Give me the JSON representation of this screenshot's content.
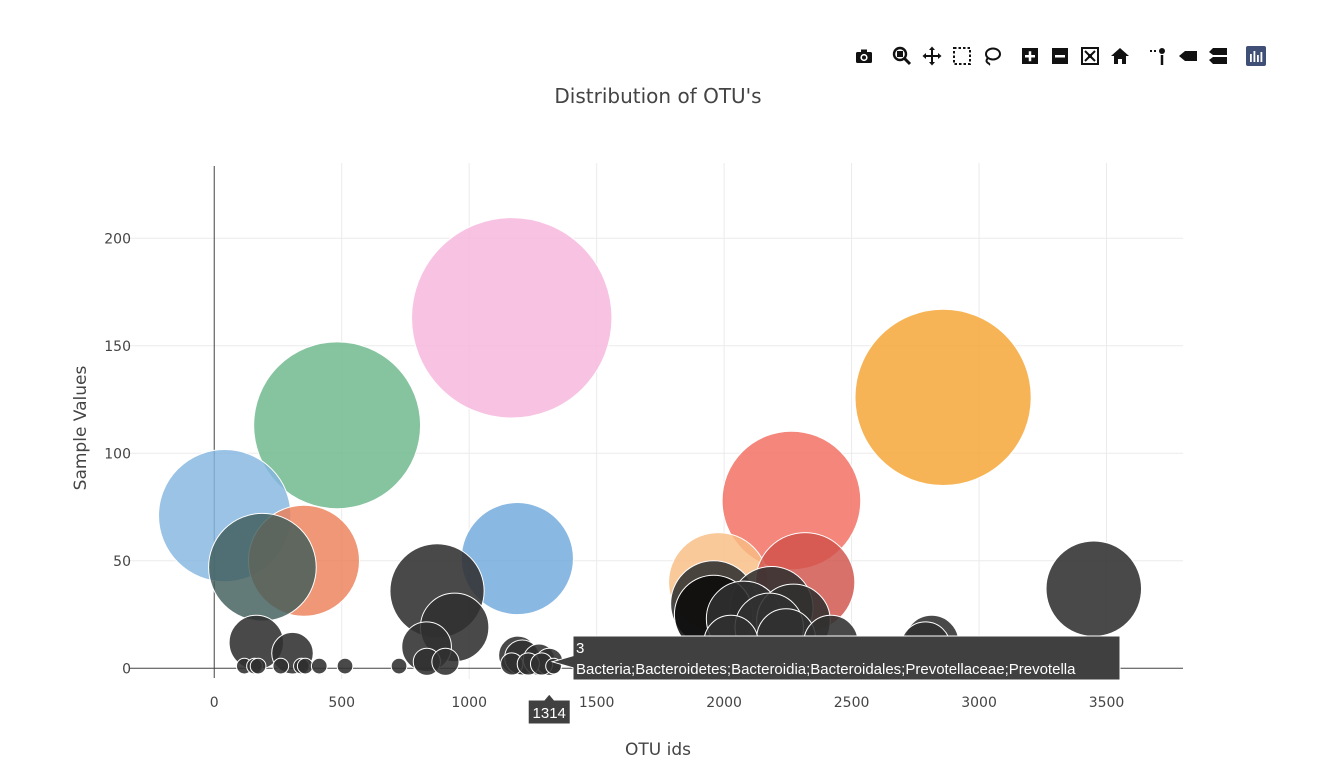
{
  "modebar": {
    "buttons": [
      {
        "name": "camera-icon"
      },
      {
        "name": "zoom-icon"
      },
      {
        "name": "pan-icon"
      },
      {
        "name": "box-select-icon"
      },
      {
        "name": "lasso-select-icon"
      },
      {
        "name": "zoom-in-icon"
      },
      {
        "name": "zoom-out-icon"
      },
      {
        "name": "autoscale-icon"
      },
      {
        "name": "reset-axes-icon"
      },
      {
        "name": "spike-lines-icon"
      },
      {
        "name": "hover-closest-icon"
      },
      {
        "name": "hover-compare-icon"
      },
      {
        "name": "plotly-logo-icon"
      }
    ]
  },
  "chart_data": {
    "type": "scatter",
    "mode": "bubble",
    "title": "Distribution of OTU's",
    "xlabel": "OTU ids",
    "ylabel": "Sample Values",
    "xlim": [
      -350,
      3800
    ],
    "ylim": [
      -5,
      235
    ],
    "xticks": [
      0,
      500,
      1000,
      1500,
      2000,
      2500,
      3000,
      3500
    ],
    "yticks": [
      0,
      50,
      100,
      150,
      200
    ],
    "grid": true,
    "points": [
      {
        "x": 1167,
        "y": 163,
        "color": "#f7b6dd"
      },
      {
        "x": 2859,
        "y": 126,
        "color": "#f5a331"
      },
      {
        "x": 482,
        "y": 113,
        "color": "#6ab78a"
      },
      {
        "x": 2264,
        "y": 78,
        "color": "#f26b5e"
      },
      {
        "x": 41,
        "y": 71,
        "color": "#84b6e0"
      },
      {
        "x": 1189,
        "y": 51,
        "color": "#6fa8dc"
      },
      {
        "x": 352,
        "y": 50,
        "color": "#ec8058"
      },
      {
        "x": 189,
        "y": 47,
        "color": "#3f5d5a"
      },
      {
        "x": 1977,
        "y": 40,
        "color": "#f9bd84"
      },
      {
        "x": 2318,
        "y": 40,
        "color": "#d1524a"
      },
      {
        "x": 3450,
        "y": 37,
        "color": "#303030"
      },
      {
        "x": 874,
        "y": 36,
        "color": "#303030"
      },
      {
        "x": 1959,
        "y": 30,
        "color": "#303030"
      },
      {
        "x": 2186,
        "y": 28,
        "color": "#303030"
      },
      {
        "x": 1959,
        "y": 25,
        "color": "#0a0a0a"
      },
      {
        "x": 2078,
        "y": 23,
        "color": "#303030"
      },
      {
        "x": 2272,
        "y": 22,
        "color": "#303030"
      },
      {
        "x": 943,
        "y": 19,
        "color": "#303030"
      },
      {
        "x": 2177,
        "y": 19,
        "color": "#303030"
      },
      {
        "x": 2243,
        "y": 14,
        "color": "#303030"
      },
      {
        "x": 2027,
        "y": 12,
        "color": "#303030"
      },
      {
        "x": 2419,
        "y": 12,
        "color": "#303030"
      },
      {
        "x": 2814,
        "y": 12,
        "color": "#303030"
      },
      {
        "x": 2790,
        "y": 10,
        "color": "#303030"
      },
      {
        "x": 165,
        "y": 12,
        "color": "#303030"
      },
      {
        "x": 833,
        "y": 10,
        "color": "#303030"
      },
      {
        "x": 307,
        "y": 7,
        "color": "#303030"
      },
      {
        "x": 1191,
        "y": 6,
        "color": "#303030"
      },
      {
        "x": 1208,
        "y": 5,
        "color": "#303030"
      },
      {
        "x": 1274,
        "y": 4,
        "color": "#303030"
      },
      {
        "x": 1314,
        "y": 3,
        "color": "#303030"
      },
      {
        "x": 834,
        "y": 3,
        "color": "#303030"
      },
      {
        "x": 907,
        "y": 3,
        "color": "#303030"
      },
      {
        "x": 1167,
        "y": 2,
        "color": "#303030"
      },
      {
        "x": 1232,
        "y": 2,
        "color": "#303030"
      },
      {
        "x": 1284,
        "y": 2,
        "color": "#303030"
      },
      {
        "x": 118,
        "y": 1,
        "color": "#303030"
      },
      {
        "x": 158,
        "y": 1,
        "color": "#303030"
      },
      {
        "x": 172,
        "y": 1,
        "color": "#303030"
      },
      {
        "x": 261,
        "y": 1,
        "color": "#303030"
      },
      {
        "x": 342,
        "y": 1,
        "color": "#303030"
      },
      {
        "x": 357,
        "y": 1,
        "color": "#303030"
      },
      {
        "x": 412,
        "y": 1,
        "color": "#303030"
      },
      {
        "x": 513,
        "y": 1,
        "color": "#303030"
      },
      {
        "x": 725,
        "y": 1,
        "color": "#303030"
      },
      {
        "x": 1331,
        "y": 1,
        "color": "#303030"
      }
    ],
    "hover": {
      "x_label": "1314",
      "y_value": "3",
      "text": "Bacteria;Bacteroidetes;Bacteroidia;Bacteroidales;Prevotellaceae;Prevotella",
      "x": 1314,
      "y": 3
    }
  }
}
